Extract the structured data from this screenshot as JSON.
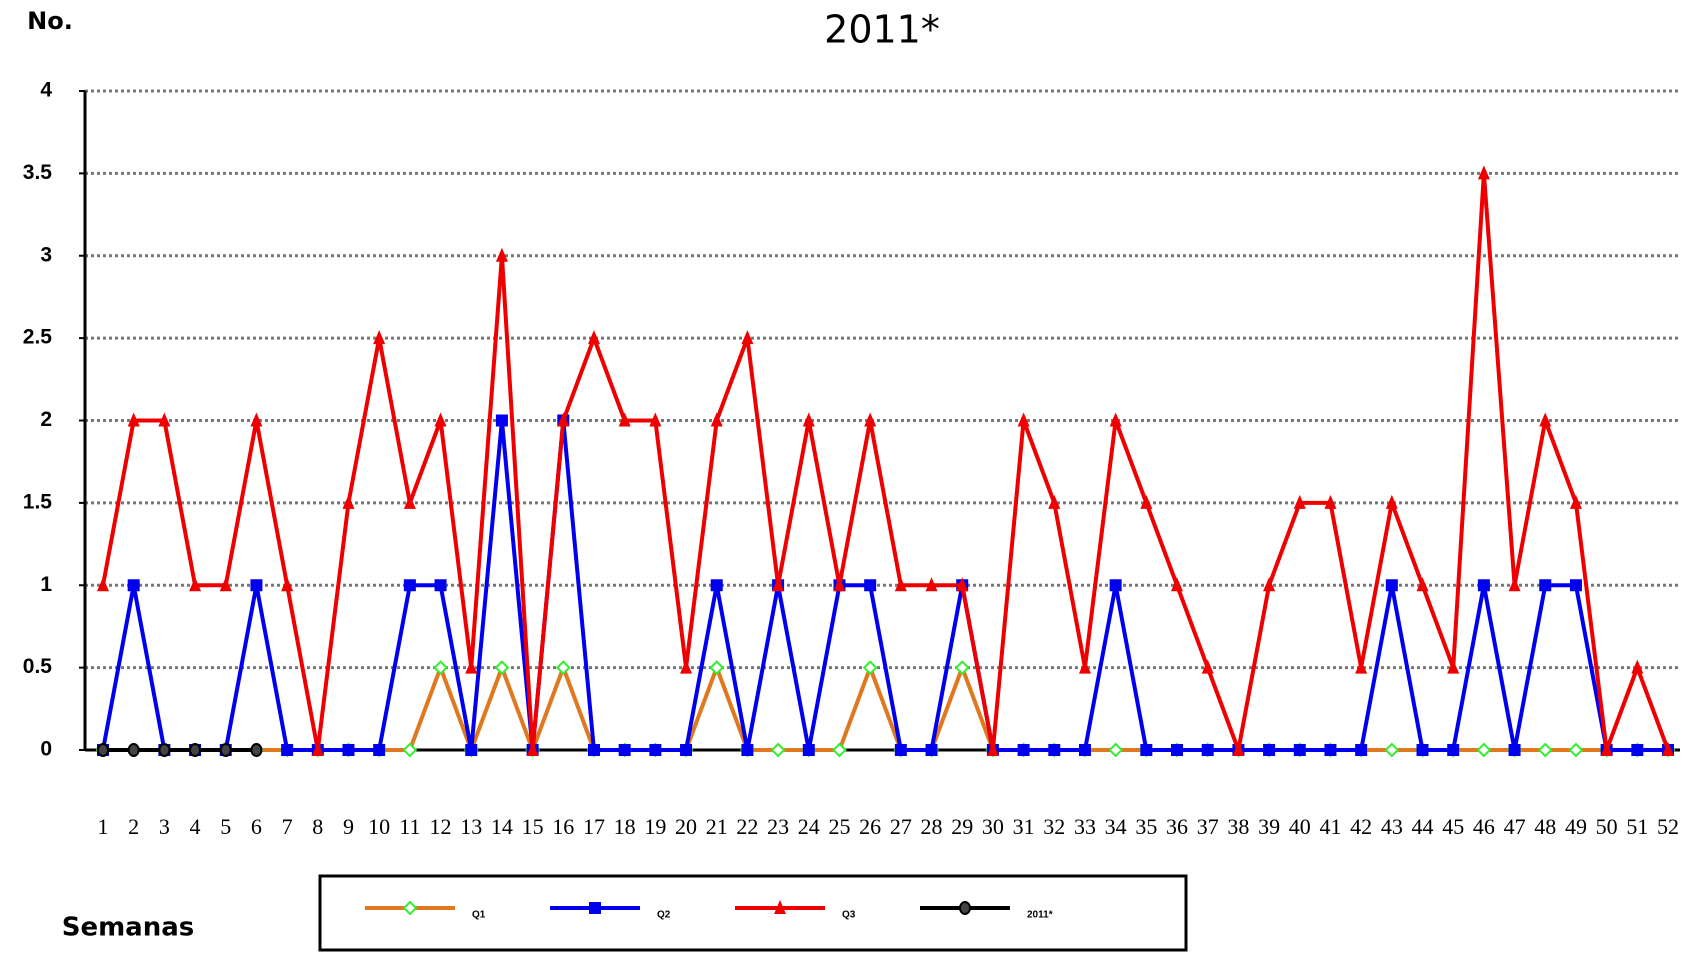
{
  "chart_data": {
    "type": "line",
    "title": "2011*",
    "y_label": "No.",
    "x_label": "Semanas",
    "categories": [
      "1",
      "2",
      "3",
      "4",
      "5",
      "6",
      "7",
      "8",
      "9",
      "10",
      "11",
      "12",
      "13",
      "14",
      "15",
      "16",
      "17",
      "18",
      "19",
      "20",
      "21",
      "22",
      "23",
      "24",
      "25",
      "26",
      "27",
      "28",
      "29",
      "30",
      "31",
      "32",
      "33",
      "34",
      "35",
      "36",
      "37",
      "38",
      "39",
      "40",
      "41",
      "42",
      "43",
      "44",
      "45",
      "46",
      "47",
      "48",
      "49",
      "50",
      "51",
      "52"
    ],
    "series": [
      {
        "name": "Q1",
        "color": "#e07820",
        "marker": "diamond",
        "marker_color": "#33ee33",
        "values": [
          0,
          0,
          0,
          0,
          0,
          0,
          0,
          0,
          0,
          0,
          0,
          0.5,
          0,
          0.5,
          0,
          0.5,
          0,
          0,
          0,
          0,
          0.5,
          0,
          0,
          0,
          0,
          0.5,
          0,
          0,
          0.5,
          0,
          0,
          0,
          0,
          0,
          0,
          0,
          0,
          0,
          0,
          0,
          0,
          0,
          0,
          0,
          0,
          0,
          0,
          0,
          0,
          0,
          0,
          0
        ]
      },
      {
        "name": "Q2",
        "color": "#0000ee",
        "marker": "square",
        "marker_color": "#0000ee",
        "values": [
          0,
          1,
          0,
          0,
          0,
          1,
          0,
          0,
          0,
          0,
          1,
          1,
          0,
          2,
          0,
          2,
          0,
          0,
          0,
          0,
          1,
          0,
          1,
          0,
          1,
          1,
          0,
          0,
          1,
          0,
          0,
          0,
          0,
          1,
          0,
          0,
          0,
          0,
          0,
          0,
          0,
          0,
          1,
          0,
          0,
          1,
          0,
          1,
          1,
          0,
          0,
          0
        ]
      },
      {
        "name": "Q3",
        "color": "#ee0000",
        "marker": "triangle",
        "marker_color": "#ee0000",
        "values": [
          1,
          2,
          2,
          1,
          1,
          2,
          1,
          0,
          1.5,
          2.5,
          1.5,
          2,
          0.5,
          3,
          0,
          2,
          2.5,
          2,
          2,
          0.5,
          2,
          2.5,
          1,
          2,
          1,
          2,
          1,
          1,
          1,
          0,
          2,
          1.5,
          0.5,
          2,
          1.5,
          1,
          0.5,
          0,
          1,
          1.5,
          1.5,
          0.5,
          1.5,
          1,
          0.5,
          3.5,
          1,
          2,
          1.5,
          0,
          0.5,
          0
        ]
      },
      {
        "name": "2011*",
        "color": "#000000",
        "marker": "circle",
        "marker_color": "#000000",
        "values": [
          0,
          0,
          0,
          0,
          0,
          0,
          null,
          null,
          null,
          null,
          null,
          null,
          null,
          null,
          null,
          null,
          null,
          null,
          null,
          null,
          null,
          null,
          null,
          null,
          null,
          null,
          null,
          null,
          null,
          null,
          null,
          null,
          null,
          null,
          null,
          null,
          null,
          null,
          null,
          null,
          null,
          null,
          null,
          null,
          null,
          null,
          null,
          null,
          null,
          null,
          null,
          null
        ]
      }
    ],
    "ylim": [
      0,
      4
    ],
    "yticks": [
      0,
      0.5,
      1,
      1.5,
      2,
      2.5,
      3,
      3.5,
      4
    ],
    "grid": true
  }
}
